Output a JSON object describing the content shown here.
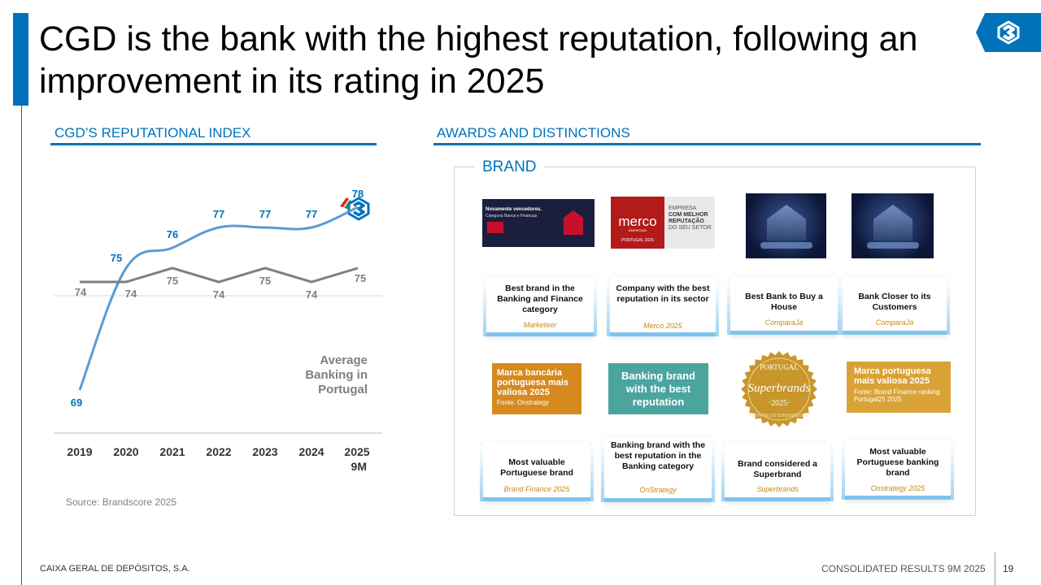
{
  "slide": {
    "title": "CGD is the bank with the highest reputation, following an improvement in its rating in 2025"
  },
  "left": {
    "heading": "CGD’S REPUTATIONAL INDEX",
    "source": "Source: Brandscore 2025"
  },
  "right": {
    "heading": "AWARDS AND DISTINCTIONS",
    "brand_label": "BRAND",
    "images": {
      "marketeer_line1": "Novamente vencedores.",
      "marketeer_line2": "Categoria Banca e Finanças",
      "merco_name": "merco",
      "merco_sub": "EMPRESAS",
      "merco_year": "PORTUGAL 2025",
      "merco_claim": [
        "EMPRESA",
        "COM MELHOR",
        "REPUTAÇÃO",
        "DO SEU SETOR"
      ],
      "onstrategy_text": "Marca bancária portuguesa mais valiosa 2025",
      "onstrategy_source": "Fonte: Onstrategy",
      "teal_text": "Banking brand with the best reputation",
      "superbrands_top": "PORTUGAL",
      "superbrands_name": "Superbrands",
      "superbrands_year": "·2025·",
      "superbrands_ring": "ELEITA PELOS CONSUMIDORES",
      "brandfinance_text": "Marca portuguesa mais valiosa 2025",
      "brandfinance_source": "Fonte: Brand Finance ranking Portugal25 2025"
    },
    "cards": [
      {
        "title": "Best brand in the Banking and Finance category",
        "source": "Marketeer"
      },
      {
        "title": "Company with the best reputation in its sector",
        "source": "Merco 2025"
      },
      {
        "title": "Best Bank to Buy a House",
        "source": "ComparaJá"
      },
      {
        "title": "Bank Closer to its Customers",
        "source": "ComparaJá"
      },
      {
        "title": "Most valuable Portuguese brand",
        "source": "Brand Finance 2025"
      },
      {
        "title": "Banking brand with the best reputation in the Banking category",
        "source": "OnStrategy"
      },
      {
        "title": "Brand considered a Superbrand",
        "source": "Superbrands"
      },
      {
        "title": "Most valuable Portuguese banking brand",
        "source": "Onstrategy 2025"
      }
    ]
  },
  "footer": {
    "company": "CAIXA GERAL DE DEPÓSITOS, S.A.",
    "report": "CONSOLIDATED RESULTS 9M 2025",
    "page": "19"
  },
  "colors": {
    "brand_blue": "#0072bc",
    "cgd_line": "#5b9bd5",
    "average_line": "#7f7f7f",
    "gold": "#c78a14",
    "teal": "#4aa59f",
    "orange": "#d68a1e"
  },
  "chart_data": {
    "type": "line",
    "categories": [
      "2019",
      "2020",
      "2021",
      "2022",
      "2023",
      "2024",
      "2025\n9M"
    ],
    "category_lines": [
      [
        "2019"
      ],
      [
        "2020"
      ],
      [
        "2021"
      ],
      [
        "2022"
      ],
      [
        "2023"
      ],
      [
        "2024"
      ],
      [
        "2025",
        "9M"
      ]
    ],
    "series": [
      {
        "name": "",
        "values": [
          69,
          75,
          76,
          77,
          77,
          77,
          78
        ],
        "color": "#5b9bd5",
        "label_color": "#0072bc"
      },
      {
        "name": "Average Banking in Portugal",
        "name_lines": [
          "Average",
          "Banking in",
          "Portugal"
        ],
        "values": [
          74,
          74,
          75,
          74,
          75,
          74,
          75
        ],
        "color": "#7f7f7f",
        "label_color": "#7f7f7f"
      }
    ],
    "ylim": [
      68,
      80
    ],
    "grid": false,
    "legend": "inline label, right"
  }
}
